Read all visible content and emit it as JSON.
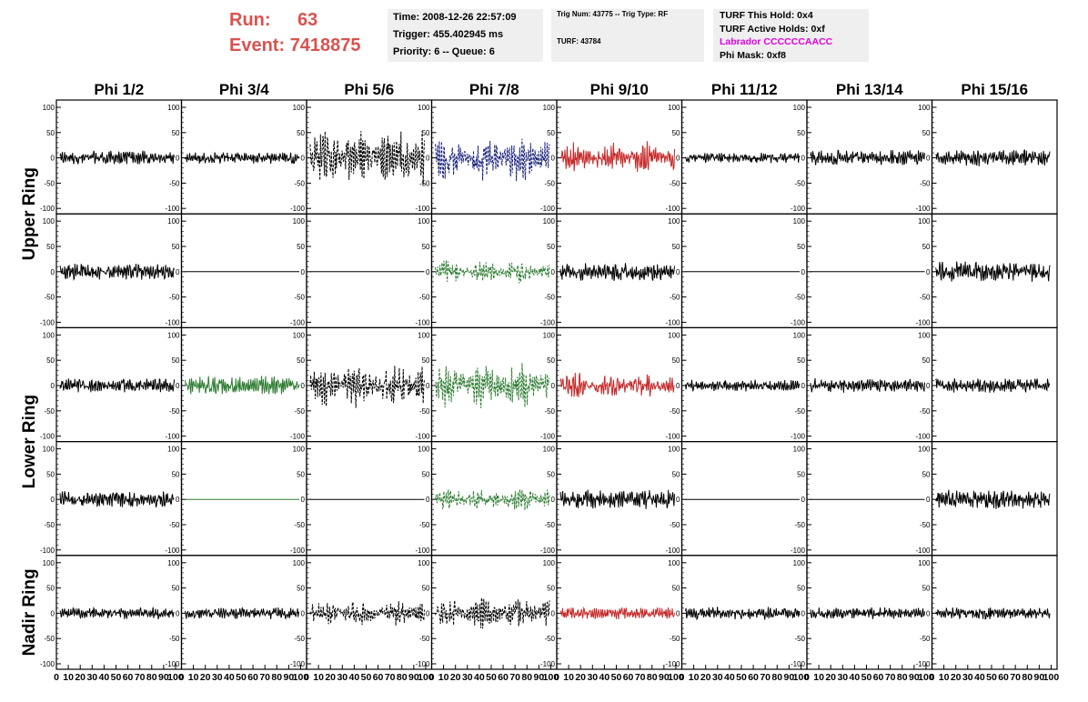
{
  "header": {
    "run_label": "Run:",
    "run_value": "63",
    "event_label": "Event:",
    "event_value": "7418875",
    "time_line": "Time: 2008-12-26 22:57:09",
    "trigger_line": "Trigger: 455.402945 ms",
    "priority_line": "Priority: 6 -- Queue: 6",
    "trig_line": "Trig Num: 43775 -- Trig Type: RF",
    "turf_line": "TURF: 43784",
    "turf_hold_line": "TURF This Hold: 0x4",
    "turf_active_line": "TURF Active Holds: 0xf",
    "labrador_line": "Labrador CCCCCCAACC",
    "phi_mask_line": "Phi Mask: 0xf8",
    "colors": {
      "run": "#d9534f",
      "labrador": "#e000e0"
    }
  },
  "chart_data": {
    "type": "line",
    "description_of_grid": "5 rows x 8 columns of waveform panels",
    "column_titles": [
      "Phi 1/2",
      "Phi 3/4",
      "Phi 5/6",
      "Phi 7/8",
      "Phi 9/10",
      "Phi 11/12",
      "Phi 13/14",
      "Phi 15/16"
    ],
    "ring_labels": [
      "Upper Ring",
      "Lower Ring",
      "Nadir Ring"
    ],
    "ylim": [
      -100,
      100
    ],
    "xlim": [
      0,
      100
    ],
    "y_ticks": [
      100,
      50,
      0,
      -50,
      -100
    ],
    "x_ticks": [
      "0",
      "10",
      "20",
      "30",
      "40",
      "50",
      "60",
      "70",
      "80",
      "90",
      "100"
    ],
    "waveforms": [
      [
        {
          "color": "#000000",
          "amp": 12,
          "style": "solid",
          "burst": false
        },
        {
          "color": "#000000",
          "amp": 10,
          "style": "solid",
          "burst": false
        },
        {
          "color": "#000000",
          "amp": 55,
          "style": "dashed",
          "burst": true
        },
        {
          "color": "#1a237e",
          "amp": 40,
          "style": "dashed",
          "burst": true
        },
        {
          "color": "#c62828",
          "amp": 28,
          "style": "solid",
          "burst": true
        },
        {
          "color": "#000000",
          "amp": 9,
          "style": "solid",
          "burst": false
        },
        {
          "color": "#000000",
          "amp": 14,
          "style": "solid",
          "burst": false
        },
        {
          "color": "#000000",
          "amp": 14,
          "style": "solid",
          "burst": false
        }
      ],
      [
        {
          "color": "#000000",
          "amp": 14,
          "style": "solid",
          "burst": false
        },
        {
          "color": "#000000",
          "amp": 0,
          "style": "solid",
          "burst": false
        },
        {
          "color": "#000000",
          "amp": 0,
          "style": "solid",
          "burst": false
        },
        {
          "color": "#2e7d32",
          "amp": 20,
          "style": "dashed",
          "burst": true
        },
        {
          "color": "#000000",
          "amp": 16,
          "style": "solid",
          "burst": false
        },
        {
          "color": "#000000",
          "amp": 0,
          "style": "solid",
          "burst": false
        },
        {
          "color": "#000000",
          "amp": 0,
          "style": "solid",
          "burst": false
        },
        {
          "color": "#000000",
          "amp": 18,
          "style": "solid",
          "burst": false
        }
      ],
      [
        {
          "color": "#000000",
          "amp": 12,
          "style": "solid",
          "burst": false
        },
        {
          "color": "#2e7d32",
          "amp": 16,
          "style": "solid",
          "burst": false
        },
        {
          "color": "#000000",
          "amp": 40,
          "style": "dashed",
          "burst": true
        },
        {
          "color": "#2e7d32",
          "amp": 40,
          "style": "dashed",
          "burst": true
        },
        {
          "color": "#c62828",
          "amp": 24,
          "style": "solid",
          "burst": true
        },
        {
          "color": "#000000",
          "amp": 10,
          "style": "solid",
          "burst": false
        },
        {
          "color": "#000000",
          "amp": 12,
          "style": "solid",
          "burst": false
        },
        {
          "color": "#000000",
          "amp": 12,
          "style": "solid",
          "burst": false
        }
      ],
      [
        {
          "color": "#000000",
          "amp": 14,
          "style": "solid",
          "burst": false
        },
        {
          "color": "#2e7d32",
          "amp": 0,
          "style": "solid",
          "burst": false
        },
        {
          "color": "#000000",
          "amp": 0,
          "style": "solid",
          "burst": false
        },
        {
          "color": "#2e7d32",
          "amp": 20,
          "style": "dashed",
          "burst": true
        },
        {
          "color": "#000000",
          "amp": 16,
          "style": "solid",
          "burst": false
        },
        {
          "color": "#000000",
          "amp": 0,
          "style": "solid",
          "burst": false
        },
        {
          "color": "#000000",
          "amp": 0,
          "style": "solid",
          "burst": false
        },
        {
          "color": "#000000",
          "amp": 16,
          "style": "solid",
          "burst": false
        }
      ],
      [
        {
          "color": "#000000",
          "amp": 10,
          "style": "solid",
          "burst": false
        },
        {
          "color": "#000000",
          "amp": 10,
          "style": "solid",
          "burst": false
        },
        {
          "color": "#000000",
          "amp": 22,
          "style": "dashed",
          "burst": true
        },
        {
          "color": "#000000",
          "amp": 28,
          "style": "dashed",
          "burst": true
        },
        {
          "color": "#c62828",
          "amp": 10,
          "style": "solid",
          "burst": false
        },
        {
          "color": "#000000",
          "amp": 12,
          "style": "solid",
          "burst": false
        },
        {
          "color": "#000000",
          "amp": 10,
          "style": "solid",
          "burst": false
        },
        {
          "color": "#000000",
          "amp": 10,
          "style": "solid",
          "burst": false
        }
      ]
    ]
  }
}
